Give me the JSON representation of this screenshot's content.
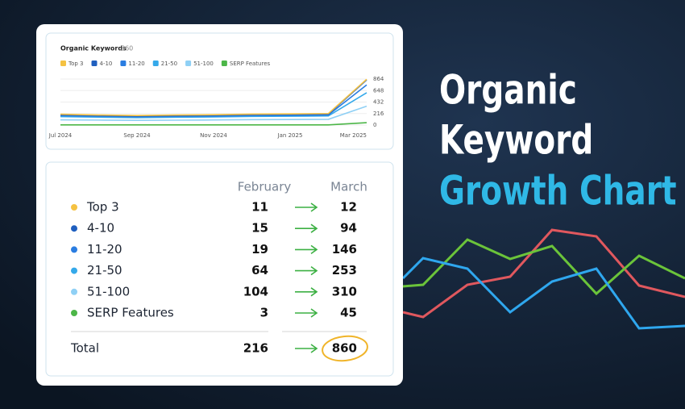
{
  "chart_data": {
    "type": "line",
    "title": "Organic Keywords",
    "subtitle": "860",
    "stacked": true,
    "categories": [
      "Jul 2024",
      null,
      "Sep 2024",
      null,
      "Nov 2024",
      null,
      "Jan 2025",
      null,
      "Mar 2025"
    ],
    "series": [
      {
        "name": "Top 3",
        "color": "#f5c242",
        "values": [
          10,
          9,
          9,
          10,
          10,
          10,
          10,
          11,
          12
        ]
      },
      {
        "name": "4-10",
        "color": "#1f5fbf",
        "values": [
          15,
          14,
          13,
          14,
          14,
          15,
          15,
          15,
          94
        ]
      },
      {
        "name": "11-20",
        "color": "#2a7de1",
        "values": [
          20,
          18,
          17,
          18,
          18,
          19,
          19,
          19,
          146
        ]
      },
      {
        "name": "21-50",
        "color": "#35a9ea",
        "values": [
          60,
          55,
          52,
          55,
          57,
          60,
          62,
          64,
          253
        ]
      },
      {
        "name": "51-100",
        "color": "#8fd0f5",
        "values": [
          95,
          90,
          85,
          88,
          92,
          98,
          100,
          104,
          310
        ]
      },
      {
        "name": "SERP Features",
        "color": "#4cb648",
        "values": [
          3,
          3,
          3,
          3,
          3,
          3,
          3,
          3,
          45
        ]
      }
    ],
    "ylim": [
      0,
      864
    ],
    "yticks": [
      0,
      216,
      432,
      648,
      864
    ],
    "grid": true
  },
  "table": {
    "columns": [
      "February",
      "March"
    ],
    "rows": [
      [
        "Top 3",
        11,
        12
      ],
      [
        "4-10",
        15,
        94
      ],
      [
        "11-20",
        19,
        146
      ],
      [
        "21-50",
        64,
        253
      ],
      [
        "51-100",
        104,
        310
      ],
      [
        "SERP Features",
        3,
        45
      ]
    ],
    "total": [
      "Total",
      216,
      860
    ]
  },
  "headline": [
    "Organic",
    "Keyword",
    "Growth Chart"
  ]
}
